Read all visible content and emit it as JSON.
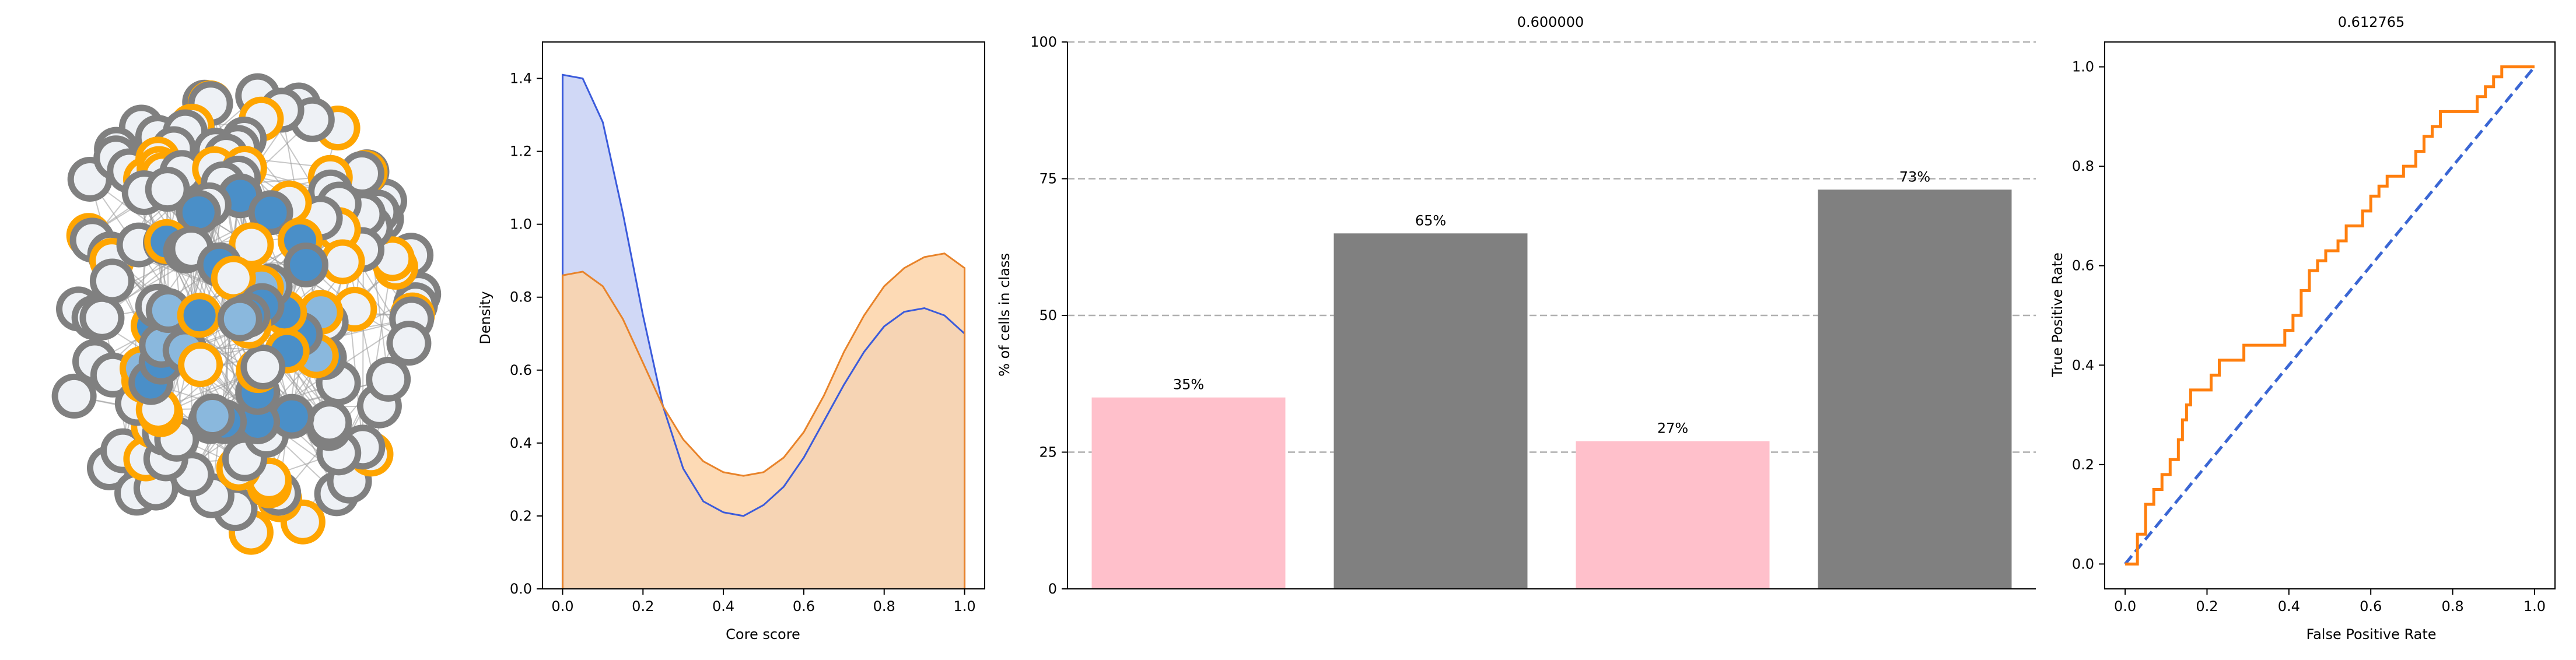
{
  "colors": {
    "node_fill_light": "#eef1f5",
    "node_stroke_gray": "#808080",
    "node_stroke_orange": "#ffa500",
    "node_fill_blue": "#4a8fc8",
    "node_fill_lightblue": "#8ab8dd",
    "kde_blue": "#3b5bdb",
    "kde_orange": "#e8832a",
    "bar_pink": "#ffc0cb",
    "bar_gray": "#808080",
    "roc_orange": "#ff7f0e",
    "roc_diag": "#3a66d4",
    "grid_dash": "#b0b0b0"
  },
  "chart_data": [
    {
      "type": "network",
      "title": "",
      "description": "core-periphery network graph; blue-filled core nodes, light peripheral nodes, orange or gray outlines"
    },
    {
      "type": "area",
      "title": "",
      "xlabel": "Core score",
      "ylabel": "Density",
      "xlim": [
        -0.05,
        1.05
      ],
      "ylim": [
        0,
        1.5
      ],
      "xticks": [
        "0.0",
        "0.2",
        "0.4",
        "0.6",
        "0.8",
        "1.0"
      ],
      "yticks": [
        "0.0",
        "0.2",
        "0.4",
        "0.6",
        "0.8",
        "1.0",
        "1.2",
        "1.4"
      ],
      "x": [
        0.0,
        0.05,
        0.1,
        0.15,
        0.2,
        0.25,
        0.3,
        0.35,
        0.4,
        0.45,
        0.5,
        0.55,
        0.6,
        0.65,
        0.7,
        0.75,
        0.8,
        0.85,
        0.9,
        0.95,
        1.0
      ],
      "series": [
        {
          "color": "#3b5bdb",
          "values": [
            1.41,
            1.4,
            1.28,
            1.03,
            0.75,
            0.5,
            0.33,
            0.24,
            0.21,
            0.2,
            0.23,
            0.28,
            0.36,
            0.46,
            0.56,
            0.65,
            0.72,
            0.76,
            0.77,
            0.75,
            0.7
          ]
        },
        {
          "color": "#e8832a",
          "values": [
            0.86,
            0.87,
            0.83,
            0.74,
            0.62,
            0.5,
            0.41,
            0.35,
            0.32,
            0.31,
            0.32,
            0.36,
            0.43,
            0.53,
            0.65,
            0.75,
            0.83,
            0.88,
            0.91,
            0.92,
            0.88
          ]
        }
      ]
    },
    {
      "type": "bar",
      "title": "0.600000",
      "xlabel": "",
      "ylabel": "% of cells in class",
      "ylim": [
        0,
        100
      ],
      "yticks": [
        "0",
        "25",
        "50",
        "75",
        "100"
      ],
      "grid": "horizontal dashed",
      "values": [
        35,
        65,
        27,
        73
      ],
      "labels": [
        "35%",
        "65%",
        "27%",
        "73%"
      ],
      "colors": [
        "#ffc0cb",
        "#808080",
        "#ffc0cb",
        "#808080"
      ]
    },
    {
      "type": "line",
      "title": "0.612765",
      "xlabel": "False Positive Rate",
      "ylabel": "True Positive Rate",
      "xlim": [
        -0.05,
        1.05
      ],
      "ylim": [
        -0.05,
        1.05
      ],
      "xticks": [
        "0.0",
        "0.2",
        "0.4",
        "0.6",
        "0.8",
        "1.0"
      ],
      "yticks": [
        "0.0",
        "0.2",
        "0.4",
        "0.6",
        "0.8",
        "1.0"
      ],
      "roc": [
        [
          0,
          0
        ],
        [
          0.03,
          0
        ],
        [
          0.03,
          0.06
        ],
        [
          0.05,
          0.06
        ],
        [
          0.05,
          0.12
        ],
        [
          0.07,
          0.12
        ],
        [
          0.07,
          0.15
        ],
        [
          0.09,
          0.15
        ],
        [
          0.09,
          0.18
        ],
        [
          0.11,
          0.18
        ],
        [
          0.11,
          0.21
        ],
        [
          0.13,
          0.21
        ],
        [
          0.13,
          0.25
        ],
        [
          0.14,
          0.25
        ],
        [
          0.14,
          0.29
        ],
        [
          0.15,
          0.29
        ],
        [
          0.15,
          0.32
        ],
        [
          0.16,
          0.32
        ],
        [
          0.16,
          0.35
        ],
        [
          0.21,
          0.35
        ],
        [
          0.21,
          0.38
        ],
        [
          0.23,
          0.38
        ],
        [
          0.23,
          0.41
        ],
        [
          0.29,
          0.41
        ],
        [
          0.29,
          0.44
        ],
        [
          0.39,
          0.44
        ],
        [
          0.39,
          0.47
        ],
        [
          0.41,
          0.47
        ],
        [
          0.41,
          0.5
        ],
        [
          0.43,
          0.5
        ],
        [
          0.43,
          0.55
        ],
        [
          0.45,
          0.55
        ],
        [
          0.45,
          0.59
        ],
        [
          0.47,
          0.59
        ],
        [
          0.47,
          0.61
        ],
        [
          0.49,
          0.61
        ],
        [
          0.49,
          0.63
        ],
        [
          0.52,
          0.63
        ],
        [
          0.52,
          0.65
        ],
        [
          0.54,
          0.65
        ],
        [
          0.54,
          0.68
        ],
        [
          0.58,
          0.68
        ],
        [
          0.58,
          0.71
        ],
        [
          0.6,
          0.71
        ],
        [
          0.6,
          0.74
        ],
        [
          0.62,
          0.74
        ],
        [
          0.62,
          0.76
        ],
        [
          0.64,
          0.76
        ],
        [
          0.64,
          0.78
        ],
        [
          0.68,
          0.78
        ],
        [
          0.68,
          0.8
        ],
        [
          0.71,
          0.8
        ],
        [
          0.71,
          0.83
        ],
        [
          0.73,
          0.83
        ],
        [
          0.73,
          0.86
        ],
        [
          0.75,
          0.86
        ],
        [
          0.75,
          0.88
        ],
        [
          0.77,
          0.88
        ],
        [
          0.77,
          0.91
        ],
        [
          0.86,
          0.91
        ],
        [
          0.86,
          0.94
        ],
        [
          0.88,
          0.94
        ],
        [
          0.88,
          0.96
        ],
        [
          0.9,
          0.96
        ],
        [
          0.9,
          0.98
        ],
        [
          0.92,
          0.98
        ],
        [
          0.92,
          1.0
        ],
        [
          1.0,
          1.0
        ]
      ],
      "diagonal": [
        [
          0,
          0
        ],
        [
          1,
          1
        ]
      ]
    }
  ]
}
